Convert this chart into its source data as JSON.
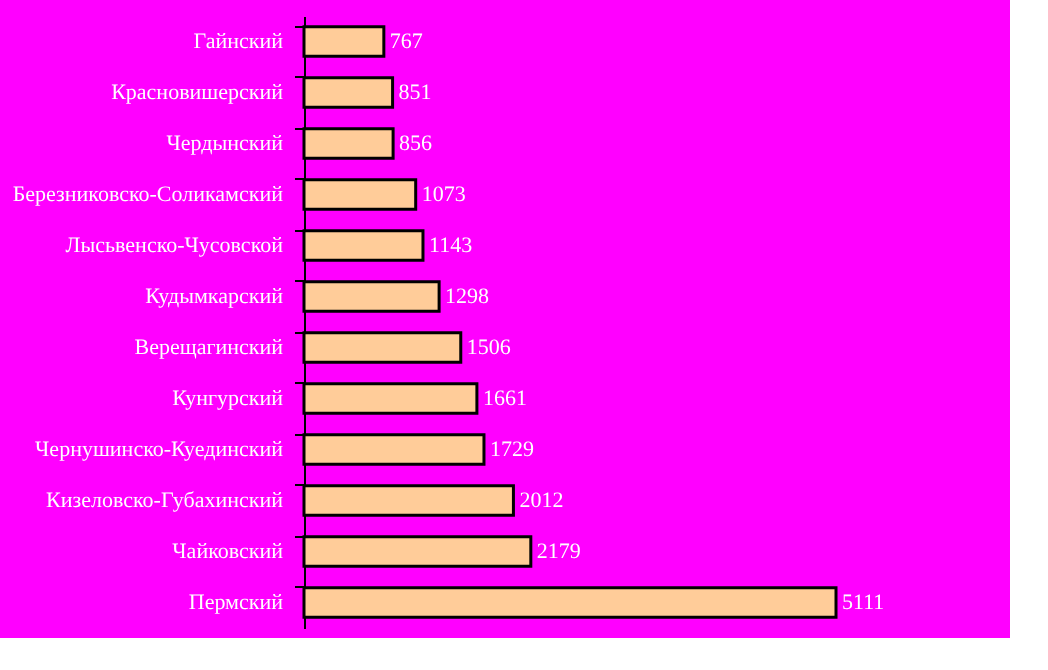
{
  "chart_data": {
    "type": "bar",
    "orientation": "horizontal",
    "data_labels": true,
    "color": "#ffcc99",
    "categories": [
      "Гайнский",
      "Красновишерский",
      "Чердынский",
      "Березниковско-Соликамский",
      "Лысьвенско-Чусовской",
      "Кудымкарский",
      "Верещагинский",
      "Кунгурский",
      "Чернушинско-Куединский",
      "Кизеловско-Губахинский",
      "Чайковский",
      "Пермский"
    ],
    "values": [
      767,
      851,
      856,
      1073,
      1143,
      1298,
      1506,
      1661,
      1729,
      2012,
      2179,
      5111
    ]
  }
}
